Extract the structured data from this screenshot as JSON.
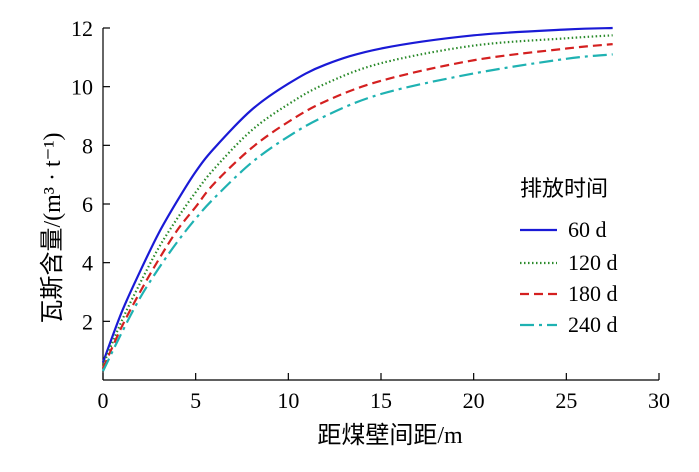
{
  "chart_data": {
    "type": "line",
    "xlabel": "距煤壁间距/m",
    "ylabel": "瓦斯含量/(m³ · t⁻¹)",
    "xlim": [
      0,
      30
    ],
    "ylim": [
      0,
      12
    ],
    "x_ticks": [
      "0",
      "5",
      "10",
      "15",
      "20",
      "25",
      "30"
    ],
    "y_ticks": [
      "2",
      "4",
      "6",
      "8",
      "10",
      "12"
    ],
    "grid": false,
    "legend": {
      "title": "排放时间",
      "position": "right"
    },
    "series": [
      {
        "name": "60 d",
        "color": "#1a1ad6",
        "dash": "solid",
        "x": [
          0,
          1,
          2,
          3,
          4,
          5,
          6,
          8,
          10,
          12,
          15,
          20,
          25,
          27.5
        ],
        "y": [
          0.6,
          2.3,
          3.7,
          5.0,
          6.1,
          7.1,
          7.9,
          9.2,
          10.1,
          10.75,
          11.3,
          11.75,
          11.95,
          12.0
        ]
      },
      {
        "name": "120 d",
        "color": "#2a8a2a",
        "dash": "dotted",
        "x": [
          0,
          1,
          2,
          3,
          4,
          5,
          6,
          8,
          10,
          12,
          15,
          20,
          25,
          27.5
        ],
        "y": [
          0.5,
          2.0,
          3.3,
          4.5,
          5.5,
          6.4,
          7.2,
          8.5,
          9.4,
          10.1,
          10.8,
          11.4,
          11.65,
          11.75
        ]
      },
      {
        "name": "180 d",
        "color": "#d42020",
        "dash": "dashed",
        "x": [
          0,
          1,
          2,
          3,
          4,
          5,
          6,
          8,
          10,
          12,
          15,
          20,
          25,
          27.5
        ],
        "y": [
          0.4,
          1.8,
          3.0,
          4.1,
          5.1,
          5.9,
          6.7,
          7.9,
          8.8,
          9.5,
          10.2,
          10.9,
          11.3,
          11.45
        ]
      },
      {
        "name": "240 d",
        "color": "#1fb2b2",
        "dash": "dashdot",
        "x": [
          0,
          1,
          2,
          3,
          4,
          5,
          6,
          8,
          10,
          12,
          15,
          20,
          25,
          27.5
        ],
        "y": [
          0.3,
          1.6,
          2.8,
          3.8,
          4.7,
          5.5,
          6.2,
          7.4,
          8.3,
          9.0,
          9.75,
          10.45,
          10.95,
          11.1
        ]
      }
    ]
  }
}
